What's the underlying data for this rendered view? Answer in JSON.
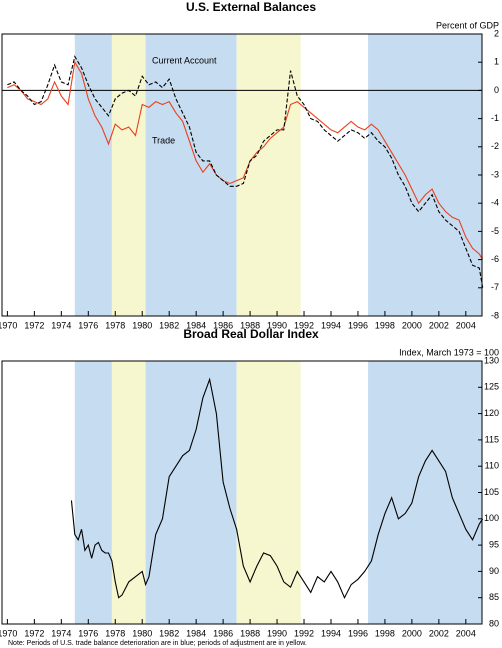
{
  "note": "Note:  Periods of U.S. trade balance deterioration are in blue; periods of adjustment are in yellow.",
  "chart_data": [
    {
      "type": "line",
      "title": "U.S. External Balances",
      "y_label": "Percent of GDP",
      "annotations": [
        "Current Account",
        "Trade"
      ],
      "xlim": [
        1969.6,
        2005.2
      ],
      "xticks": [
        1970,
        1972,
        1974,
        1976,
        1978,
        1980,
        1982,
        1984,
        1986,
        1988,
        1990,
        1992,
        1994,
        1996,
        1998,
        2000,
        2002,
        2004
      ],
      "ylim": [
        -8,
        2
      ],
      "yticks": [
        2,
        1,
        0,
        -1,
        -2,
        -3,
        -4,
        -5,
        -6,
        -7,
        -8
      ],
      "reference_line": 0,
      "shaded_periods": [
        {
          "start": 1975,
          "end": 1977.75,
          "color": "#c6dcf1"
        },
        {
          "start": 1977.75,
          "end": 1980.25,
          "color": "#f6f6cf"
        },
        {
          "start": 1980.25,
          "end": 1987,
          "color": "#c6dcf1"
        },
        {
          "start": 1987,
          "end": 1991.75,
          "color": "#f6f6cf"
        },
        {
          "start": 1996.75,
          "end": 2005.2,
          "color": "#c6dcf1"
        }
      ],
      "x": [
        1970,
        1970.5,
        1971,
        1971.5,
        1972,
        1972.5,
        1973,
        1973.5,
        1974,
        1974.5,
        1975,
        1975.5,
        1976,
        1976.5,
        1977,
        1977.5,
        1978,
        1978.5,
        1979,
        1979.5,
        1980,
        1980.5,
        1981,
        1981.5,
        1982,
        1982.5,
        1983,
        1983.5,
        1984,
        1984.5,
        1985,
        1985.5,
        1986,
        1986.5,
        1987,
        1987.5,
        1988,
        1988.5,
        1989,
        1989.5,
        1990,
        1990.5,
        1991,
        1991.5,
        1992,
        1992.5,
        1993,
        1993.5,
        1994,
        1994.5,
        1995,
        1995.5,
        1996,
        1996.5,
        1997,
        1997.5,
        1998,
        1998.5,
        1999,
        1999.5,
        2000,
        2000.5,
        2001,
        2001.5,
        2002,
        2002.5,
        2003,
        2003.5,
        2004,
        2004.5,
        2005,
        2005.25
      ],
      "series": [
        {
          "name": "Trade",
          "color": "#e8401c",
          "dashed": false,
          "values": [
            0.1,
            0.2,
            0.0,
            -0.3,
            -0.4,
            -0.5,
            -0.3,
            0.3,
            -0.2,
            -0.5,
            1.0,
            0.6,
            -0.3,
            -0.9,
            -1.3,
            -1.9,
            -1.2,
            -1.4,
            -1.3,
            -1.6,
            -0.5,
            -0.6,
            -0.4,
            -0.5,
            -0.4,
            -0.8,
            -1.1,
            -1.8,
            -2.5,
            -2.9,
            -2.6,
            -3.0,
            -3.2,
            -3.3,
            -3.2,
            -3.1,
            -2.5,
            -2.2,
            -2.0,
            -1.7,
            -1.5,
            -1.3,
            -0.5,
            -0.4,
            -0.6,
            -0.8,
            -1.0,
            -1.2,
            -1.4,
            -1.5,
            -1.3,
            -1.1,
            -1.3,
            -1.4,
            -1.2,
            -1.4,
            -1.8,
            -2.2,
            -2.6,
            -3.0,
            -3.5,
            -4.0,
            -3.7,
            -3.5,
            -4.0,
            -4.3,
            -4.5,
            -4.6,
            -5.2,
            -5.6,
            -5.8,
            -6.0
          ]
        },
        {
          "name": "Current Account",
          "color": "#000000",
          "dashed": true,
          "values": [
            0.2,
            0.3,
            0.0,
            -0.2,
            -0.5,
            -0.4,
            0.2,
            0.9,
            0.3,
            0.2,
            1.2,
            0.8,
            0.2,
            -0.3,
            -0.6,
            -0.9,
            -0.3,
            -0.1,
            0.0,
            -0.2,
            0.5,
            0.2,
            0.3,
            0.1,
            0.4,
            -0.3,
            -0.8,
            -1.3,
            -2.2,
            -2.5,
            -2.5,
            -3.0,
            -3.2,
            -3.4,
            -3.4,
            -3.3,
            -2.5,
            -2.3,
            -1.8,
            -1.6,
            -1.4,
            -1.4,
            0.7,
            -0.2,
            -0.5,
            -1.0,
            -1.1,
            -1.4,
            -1.6,
            -1.8,
            -1.6,
            -1.4,
            -1.5,
            -1.7,
            -1.5,
            -1.8,
            -2.0,
            -2.4,
            -3.0,
            -3.4,
            -4.0,
            -4.3,
            -4.0,
            -3.7,
            -4.3,
            -4.6,
            -4.8,
            -5.0,
            -5.6,
            -6.2,
            -6.3,
            -7.0
          ]
        }
      ]
    },
    {
      "type": "line",
      "title": "Broad Real Dollar Index",
      "y_label": "Index, March 1973 = 100",
      "xlim": [
        1969.6,
        2005.2
      ],
      "xticks": [
        1970,
        1972,
        1974,
        1976,
        1978,
        1980,
        1982,
        1984,
        1986,
        1988,
        1990,
        1992,
        1994,
        1996,
        1998,
        2000,
        2002,
        2004
      ],
      "ylim": [
        80,
        130
      ],
      "yticks": [
        130,
        125,
        120,
        115,
        110,
        105,
        100,
        95,
        90,
        85,
        80
      ],
      "shaded_periods": [
        {
          "start": 1975,
          "end": 1977.75,
          "color": "#c6dcf1"
        },
        {
          "start": 1977.75,
          "end": 1980.25,
          "color": "#f6f6cf"
        },
        {
          "start": 1980.25,
          "end": 1987,
          "color": "#c6dcf1"
        },
        {
          "start": 1987,
          "end": 1991.75,
          "color": "#f6f6cf"
        },
        {
          "start": 1996.75,
          "end": 2005.2,
          "color": "#c6dcf1"
        }
      ],
      "x": [
        1974.75,
        1975,
        1975.25,
        1975.5,
        1975.75,
        1976,
        1976.25,
        1976.5,
        1976.75,
        1977,
        1977.25,
        1977.5,
        1977.75,
        1978,
        1978.25,
        1978.5,
        1979,
        1979.5,
        1980,
        1980.25,
        1980.5,
        1981,
        1981.5,
        1982,
        1982.5,
        1983,
        1983.5,
        1984,
        1984.5,
        1985,
        1985.5,
        1986,
        1986.5,
        1987,
        1987.5,
        1988,
        1988.5,
        1989,
        1989.5,
        1990,
        1990.5,
        1991,
        1991.5,
        1992,
        1992.5,
        1993,
        1993.5,
        1994,
        1994.5,
        1995,
        1995.5,
        1996,
        1996.5,
        1997,
        1997.5,
        1998,
        1998.5,
        1999,
        1999.5,
        2000,
        2000.5,
        2001,
        2001.5,
        2002,
        2002.5,
        2003,
        2003.5,
        2004,
        2004.5,
        2005,
        2005.25
      ],
      "color": "#000000",
      "values": [
        103.5,
        97,
        96,
        98,
        94,
        95,
        92.5,
        95,
        95.5,
        94,
        93.5,
        93.5,
        92,
        88,
        85,
        85.5,
        88,
        89,
        90,
        87.5,
        89,
        97,
        100,
        108,
        110,
        112,
        113,
        117,
        123,
        126.5,
        120,
        107,
        102,
        98,
        91,
        88,
        91,
        93.5,
        93,
        91,
        88,
        87,
        90,
        88,
        86,
        89,
        88,
        90,
        88,
        85,
        87.5,
        88.5,
        90,
        92,
        97,
        101,
        104,
        100,
        101,
        103,
        108,
        111,
        113,
        111,
        109,
        104,
        101,
        98,
        96,
        99,
        100
      ]
    }
  ]
}
